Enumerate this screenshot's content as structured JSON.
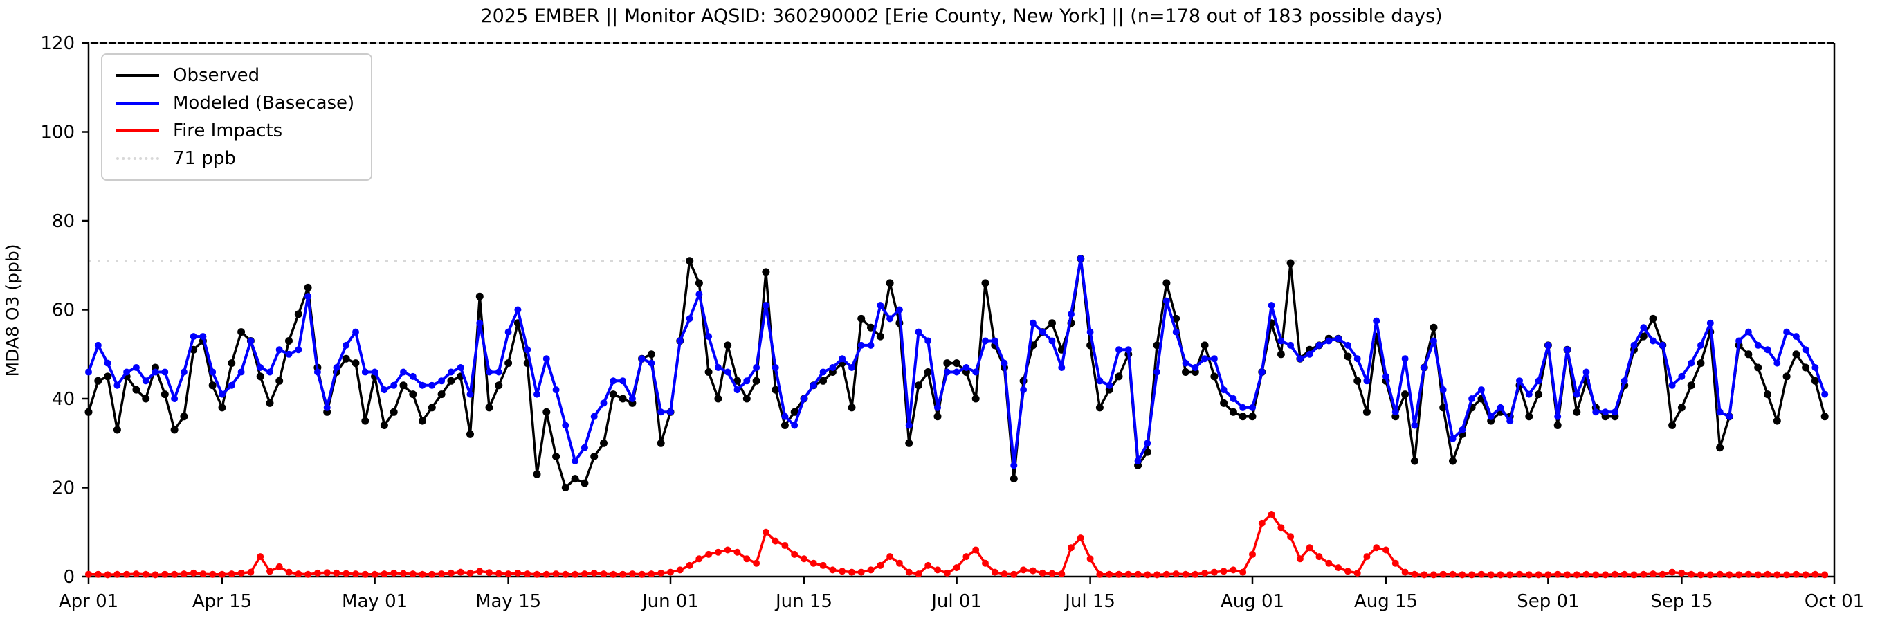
{
  "title": "2025 EMBER || Monitor AQSID: 360290002 [Erie County, New York] || (n=178 out of 183 possible days)",
  "colors": {
    "observed": "#000000",
    "modeled": "#0000ff",
    "fire": "#ff0000",
    "threshold_line": "#d8d8d8",
    "axis": "#000000",
    "background": "#ffffff"
  },
  "chart_data": {
    "type": "line",
    "title": "2025 EMBER || Monitor AQSID: 360290002 [Erie County, New York] || (n=178 out of 183 possible days)",
    "xlabel": "",
    "ylabel": "MDA8 O3 (ppb)",
    "ylim": [
      0,
      120
    ],
    "yticks": [
      0,
      20,
      40,
      60,
      80,
      100,
      120
    ],
    "x_start_date": "Apr 01",
    "x_end_date": "Oct 01",
    "x_unit": "day",
    "n_days": 183,
    "xtick_labels": [
      "Apr 01",
      "Apr 15",
      "May 01",
      "May 15",
      "Jun 01",
      "Jun 15",
      "Jul 01",
      "Jul 15",
      "Aug 01",
      "Aug 15",
      "Sep 01",
      "Sep 15",
      "Oct 01"
    ],
    "xtick_days": [
      0,
      14,
      30,
      44,
      61,
      75,
      91,
      105,
      122,
      136,
      153,
      167,
      183
    ],
    "grid": false,
    "legend_position": "upper left",
    "threshold": {
      "value": 71,
      "label": "71 ppb",
      "color": "#d8d8d8",
      "style": "dotted"
    },
    "legend": [
      {
        "label": "Observed",
        "color": "#000000",
        "style": "solid"
      },
      {
        "label": "Modeled (Basecase)",
        "color": "#0000ff",
        "style": "solid"
      },
      {
        "label": "Fire Impacts",
        "color": "#ff0000",
        "style": "solid"
      },
      {
        "label": "71 ppb",
        "color": "#d8d8d8",
        "style": "dotted"
      }
    ],
    "series": [
      {
        "name": "Observed",
        "color": "#000000",
        "marker": "circle",
        "values": [
          37,
          44,
          45,
          33,
          45,
          42,
          40,
          47,
          41,
          33,
          36,
          51,
          53,
          43,
          38,
          48,
          55,
          53,
          45,
          39,
          44,
          53,
          59,
          65,
          47,
          37,
          46,
          49,
          48,
          35,
          45,
          34,
          37,
          43,
          41,
          35,
          38,
          41,
          44,
          45,
          32,
          63,
          38,
          43,
          48,
          57,
          48,
          23,
          37,
          27,
          20,
          22,
          21,
          27,
          30,
          41,
          40,
          39,
          49,
          50,
          30,
          37,
          53,
          71,
          66,
          46,
          40,
          52,
          44,
          40,
          44,
          68.5,
          42,
          34,
          37,
          40,
          43,
          44,
          46,
          48,
          38,
          58,
          56,
          54,
          66,
          57,
          30,
          43,
          46,
          36,
          48,
          48,
          46,
          40,
          66,
          52,
          47,
          22,
          44,
          52,
          55,
          57,
          51,
          57,
          71.5,
          52,
          38,
          42,
          45,
          50,
          25,
          28,
          52,
          66,
          58,
          46,
          46,
          52,
          45,
          39,
          37,
          36,
          36,
          46,
          57,
          50,
          70.5,
          49,
          51,
          52,
          53.5,
          53.5,
          49.5,
          44,
          37,
          54,
          44,
          36,
          41,
          26,
          47,
          56,
          38,
          26,
          32,
          38,
          40,
          35,
          37,
          36,
          43,
          36,
          41,
          52,
          34,
          51,
          37,
          44,
          38,
          36,
          36,
          43,
          51,
          54,
          58,
          52,
          34,
          38,
          43,
          48,
          55,
          29,
          36,
          52,
          50,
          47,
          41,
          35,
          45,
          50,
          47,
          44,
          36
        ]
      },
      {
        "name": "Modeled (Basecase)",
        "color": "#0000ff",
        "marker": "circle",
        "values": [
          46,
          52,
          48,
          43,
          46,
          47,
          44,
          46,
          46,
          40,
          46,
          54,
          54,
          46,
          41,
          43,
          46,
          53,
          47,
          46,
          51,
          50,
          51,
          63,
          46,
          38,
          47,
          52,
          55,
          46,
          46,
          42,
          43,
          46,
          45,
          43,
          43,
          44,
          46,
          47,
          41,
          57,
          46,
          46,
          55,
          60,
          51,
          41,
          49,
          42,
          34,
          26,
          29,
          36,
          39,
          44,
          44,
          40,
          49,
          48,
          37,
          37,
          53,
          58,
          63.5,
          54,
          47,
          46,
          42,
          44,
          47,
          61,
          47,
          36,
          34,
          40,
          43,
          46,
          47,
          49,
          47,
          52,
          52,
          61,
          58,
          60,
          34,
          55,
          53,
          38,
          46,
          46,
          47,
          46,
          53,
          53,
          48,
          25,
          42,
          57,
          55,
          53,
          47,
          59,
          71.5,
          55,
          44,
          43,
          51,
          51,
          26,
          30,
          46,
          62,
          55,
          48,
          47,
          49,
          49,
          42,
          40,
          38,
          38,
          46,
          61,
          53,
          52,
          49,
          50,
          52,
          53,
          53.5,
          52,
          49,
          44,
          57.5,
          45,
          37,
          49,
          34,
          47,
          53,
          42,
          31,
          33,
          40,
          42,
          36,
          38,
          35,
          44,
          41,
          44,
          52,
          36,
          51,
          41,
          46,
          37,
          37,
          37,
          44,
          52,
          56,
          53,
          52,
          43,
          45,
          48,
          52,
          57,
          37,
          36,
          53,
          55,
          52,
          51,
          48,
          55,
          54,
          51,
          47,
          41
        ]
      },
      {
        "name": "Fire Impacts",
        "color": "#ff0000",
        "marker": "circle",
        "values": [
          0.5,
          0.5,
          0.4,
          0.5,
          0.5,
          0.6,
          0.5,
          0.4,
          0.5,
          0.5,
          0.6,
          0.8,
          0.6,
          0.5,
          0.5,
          0.6,
          0.8,
          1.0,
          4.5,
          1.2,
          2.2,
          1.0,
          0.6,
          0.5,
          0.8,
          0.9,
          0.8,
          0.7,
          0.6,
          0.5,
          0.5,
          0.6,
          0.8,
          0.7,
          0.6,
          0.5,
          0.5,
          0.6,
          0.8,
          1.0,
          0.8,
          1.2,
          0.9,
          0.7,
          0.6,
          0.8,
          0.6,
          0.5,
          0.5,
          0.6,
          0.5,
          0.5,
          0.6,
          0.8,
          0.6,
          0.5,
          0.5,
          0.6,
          0.5,
          0.6,
          0.8,
          1.0,
          1.5,
          2.5,
          4.0,
          5.0,
          5.5,
          6.0,
          5.5,
          4.0,
          3.0,
          10.0,
          8.0,
          7.0,
          5.0,
          4.0,
          3.0,
          2.5,
          1.5,
          1.2,
          1.0,
          1.0,
          1.5,
          2.5,
          4.5,
          3.0,
          1.0,
          0.6,
          2.5,
          1.5,
          0.8,
          2.0,
          4.5,
          6.0,
          3.0,
          1.0,
          0.6,
          0.5,
          1.5,
          1.3,
          0.8,
          0.7,
          0.6,
          6.5,
          8.7,
          4.0,
          0.5,
          0.5,
          0.5,
          0.5,
          0.5,
          0.4,
          0.4,
          0.5,
          0.6,
          0.5,
          0.5,
          0.8,
          1.0,
          1.2,
          1.5,
          1.0,
          5.0,
          12.0,
          14.0,
          11.0,
          9.0,
          4.0,
          6.5,
          4.5,
          3.0,
          2.0,
          1.2,
          0.8,
          4.5,
          6.5,
          6.0,
          3.0,
          1.0,
          0.5,
          0.4,
          0.4,
          0.5,
          0.5,
          0.4,
          0.4,
          0.5,
          0.4,
          0.4,
          0.4,
          0.5,
          0.4,
          0.4,
          0.4,
          0.5,
          0.4,
          0.4,
          0.5,
          0.4,
          0.4,
          0.5,
          0.5,
          0.4,
          0.5,
          0.6,
          0.5,
          1.0,
          0.8,
          0.5,
          0.4,
          0.4,
          0.5,
          0.4,
          0.4,
          0.5,
          0.4,
          0.5,
          0.4,
          0.4,
          0.5,
          0.4,
          0.5,
          0.4
        ]
      }
    ],
    "plot_geometry": {
      "figure_width": 2717,
      "figure_height": 900,
      "plot_left": 128,
      "plot_right": 2651,
      "plot_top": 62,
      "plot_bottom": 833
    }
  }
}
